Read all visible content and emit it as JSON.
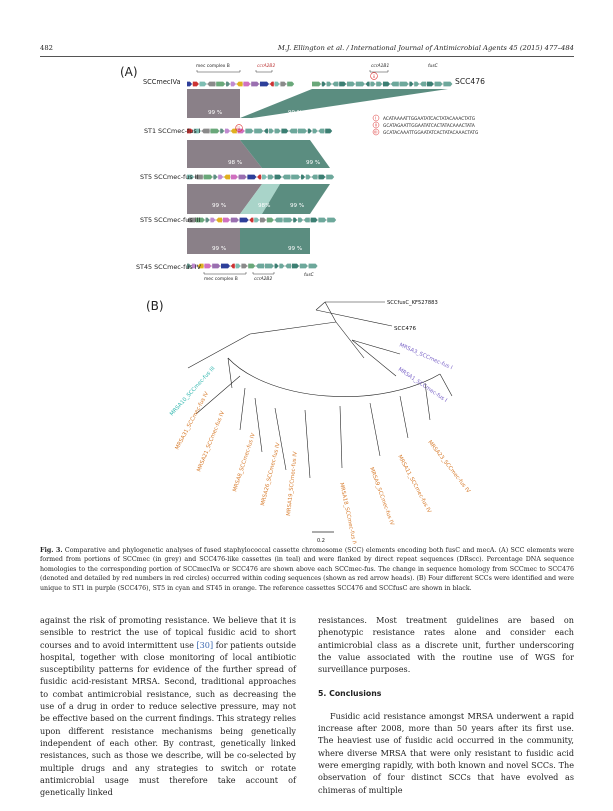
{
  "header": {
    "page_number": "482",
    "journal_authors": "M.J. Ellington et al. / International Journal of Antimicrobial Agents 45 (2015) 477–484"
  },
  "figure": {
    "panel_a_label": "(A)",
    "panel_b_label": "(B)",
    "panel_a": {
      "top_label": "SCCmecIVa",
      "right_label": "SCC476",
      "gene_labels": {
        "mec_complex": "mec complex B",
        "ccr": "ccrA2B2",
        "ccr1": "ccrA1B1",
        "fusc": "fusC",
        "mec_complex_bottom": "mec complex B",
        "ccr_bottom": "ccrA2B2",
        "fusc_bottom": "fusC"
      },
      "rows": [
        {
          "label": "ST1 SCCmec-fus I",
          "pct_left": "99 %",
          "pct_right": "99 %"
        },
        {
          "label": "ST5 SCCmec-fus II",
          "pct_left": "98 %",
          "pct_right": "99 %"
        },
        {
          "label": "ST5 SCCmec-fus III",
          "pct_left": "99 %",
          "pct_mid": "98%",
          "pct_right": "99 %"
        },
        {
          "label": "ST45 SCCmec-fus IV",
          "pct_left": "99 %",
          "pct_right": "99 %"
        }
      ],
      "dr_markers": [
        "i",
        "ii",
        "iii"
      ],
      "dr_sequences": [
        {
          "id": "i",
          "seq": "ACATAAAATTGGAATATCACTATACAAACTATG"
        },
        {
          "id": "ii",
          "seq": "GCATAGAATTGGAATATCACTATACAAACTATA"
        },
        {
          "id": "iii",
          "seq": "GCATACAAATTGGAATATCACTATACAAACTATG"
        }
      ]
    },
    "panel_b": {
      "references": [
        "SCCfusC_KF527883",
        "SCC476"
      ],
      "purple_leaves": [
        "MRSA3_SCCmec-fus I",
        "MRSA1_SCCmec-fus I"
      ],
      "cyan_leaves": [
        "MRSA10_SCCmec-fus III"
      ],
      "orange_leaves": [
        "MRSA31_SCCmec-fus IV",
        "MRSA21_SCCmec-fus IV",
        "MRSA8_SCCmec-fus IV",
        "MRSA26_SCCmec-fus IV",
        "MRSA19_SCCmec-fus IV",
        "MRSA18_SCCmec-fus IV",
        "MRSA9_SCCmec-fus IV",
        "MRSA11_SCCmec-fus IV",
        "MRSA23_SCCmec-fus IV"
      ],
      "scale": "0.2",
      "colors": {
        "purple": "#7b64c8",
        "cyan": "#34b8b0",
        "orange": "#d77a2a"
      }
    }
  },
  "caption": {
    "bold": "Fig. 3.",
    "text": " Comparative and phylogenetic analyses of fused staphylococcal cassette chromosome (SCC) elements encoding both fusC and mecA. (A) SCC elements were formed from portions of SCCmec (in grey) and SCC476-like cassettes (in teal) and were flanked by direct repeat sequences (DRscc). Percentage DNA sequence homologies to the corresponding portion of SCCmecIVa or SCC476 are shown above each SCCmec-fus. The change in sequence homology from SCCmec to SCC476 (denoted and detailed by red numbers in red circles) occurred within coding sequences (shown as red arrow heads). (B) Four different SCCs were identified and were unique to ST1 in purple (SCC476), ST5 in cyan and ST45 in orange. The reference cassettes SCC476 and SCCfusC are shown in black."
  },
  "body": {
    "left_col_1a": "against the risk of promoting resistance. We believe that it is sensible to restrict the use of topical fusidic acid to short courses and to avoid intermittent use ",
    "left_ref": "[30]",
    "left_col_1b": " for patients outside hospital, together with close monitoring of local antibiotic susceptibility patterns for evidence of the further spread of fusidic acid-resistant MRSA. Second, traditional approaches to combat antimicrobial resistance, such as decreasing the use of a drug in order to reduce selective pressure, may not be effective based on the current findings. This strategy relies upon different resistance mechanisms being genetically independent of each other. By contrast, genetically linked resistances, such as those we describe, will be co-selected by multiple drugs and any strategies to switch or rotate antimicrobial usage must therefore take account of genetically linked",
    "right_col_1": "resistances. Most treatment guidelines are based on phenotypic resistance rates alone and consider each antimicrobial class as a discrete unit, further underscoring the value associated with the routine use of WGS for surveillance purposes.",
    "section_heading": "5. Conclusions",
    "right_col_2": "Fusidic acid resistance amongst MRSA underwent a rapid increase after 2008, more than 50 years after its first use. The heaviest use of fusidic acid occurred in the community, where diverse MRSA that were only resistant to fusidic acid were emerging rapidly, with both known and novel SCCs. The observation of four distinct SCCs that have evolved as chimeras of multiple"
  }
}
